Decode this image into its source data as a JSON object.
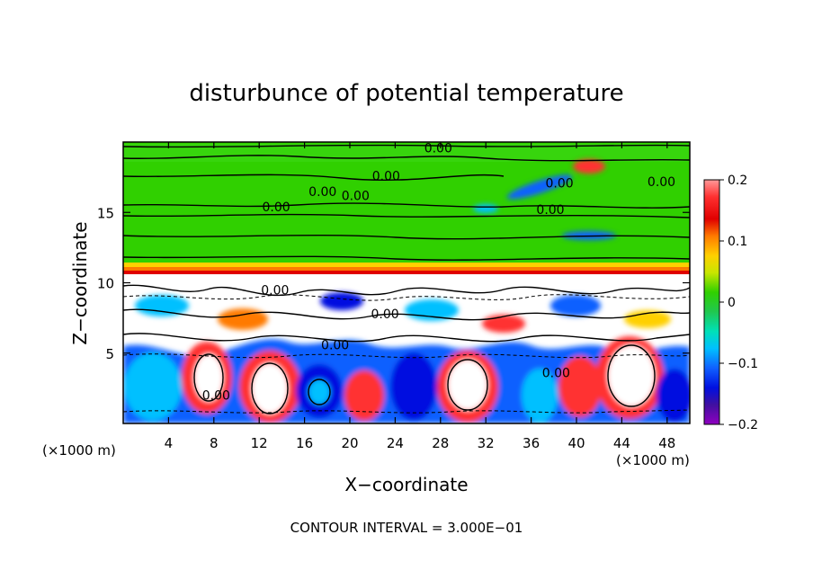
{
  "chart_data": {
    "type": "heatmap",
    "title": "disturbunce of potential temperature",
    "xlabel": "X−coordinate",
    "ylabel": "Z−coordinate",
    "x_unit_left": "(×1000 m)",
    "x_unit_right": "(×1000 m)",
    "footer": "CONTOUR INTERVAL = 3.000E−01",
    "xlim": [
      0,
      50
    ],
    "ylim": [
      0,
      20
    ],
    "x_ticks": [
      4,
      8,
      12,
      16,
      20,
      24,
      28,
      32,
      36,
      40,
      44,
      48
    ],
    "y_ticks": [
      5,
      10,
      15
    ],
    "colorbar": {
      "min": -0.2,
      "max": 0.2,
      "ticks": [
        "0.2",
        "0.1",
        "0",
        "−0.1",
        "−0.2"
      ],
      "tick_values": [
        0.2,
        0.1,
        0,
        -0.1,
        -0.2
      ],
      "colors": [
        "#ff9999",
        "#ff3030",
        "#e00000",
        "#ff7a00",
        "#ffd000",
        "#c8e600",
        "#30d000",
        "#20c850",
        "#00e0b8",
        "#00c0ff",
        "#1060ff",
        "#0010e0",
        "#4010a0",
        "#9000c0"
      ]
    },
    "contour_labels": [
      {
        "text": "0.00",
        "x": 27.8,
        "y": 19.6
      },
      {
        "text": "0.00",
        "x": 23.2,
        "y": 17.6
      },
      {
        "text": "0.00",
        "x": 38.5,
        "y": 17.1
      },
      {
        "text": "0.00",
        "x": 47.5,
        "y": 17.2
      },
      {
        "text": "0.00",
        "x": 17.6,
        "y": 16.5
      },
      {
        "text": "0.00",
        "x": 20.5,
        "y": 16.2
      },
      {
        "text": "0.00",
        "x": 13.5,
        "y": 15.4
      },
      {
        "text": "0.00",
        "x": 37.7,
        "y": 15.2
      },
      {
        "text": "0.00",
        "x": 13.4,
        "y": 9.5
      },
      {
        "text": "0.00",
        "x": 23.1,
        "y": 7.8
      },
      {
        "text": "0.00",
        "x": 18.7,
        "y": 5.6
      },
      {
        "text": "0.00",
        "x": 38.2,
        "y": 3.6
      },
      {
        "text": "0.00",
        "x": 8.2,
        "y": 2.0
      }
    ]
  }
}
